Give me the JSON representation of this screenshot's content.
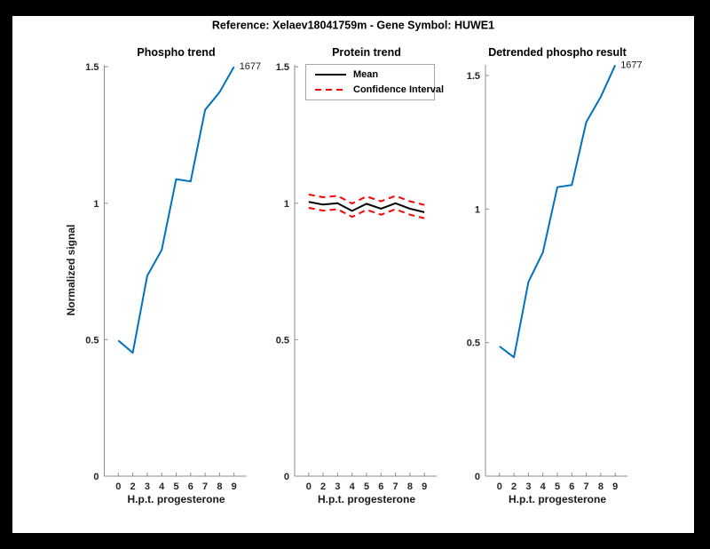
{
  "figure_title": "Reference:  Xelaev18041759m - Gene Symbol:  HUWE1",
  "ylabel": "Normalized signal",
  "colors": {
    "line_blue": "#0072BD",
    "mean_black": "#000000",
    "ci_red": "#FF0000",
    "axis_gray": "#8c8c8c",
    "text_dark": "#262626",
    "background": "#FFFFFF",
    "frame": "#000000"
  },
  "axes_shared": {
    "xlabel": "H.p.t. progesterone",
    "xticklabels": [
      "0",
      "2",
      "3",
      "4",
      "5",
      "6",
      "7",
      "8",
      "9"
    ],
    "yticks": [
      0,
      0.5,
      1,
      1.5
    ],
    "yticklabels": [
      "0",
      "0.5",
      "1",
      "1.5"
    ],
    "grid": false
  },
  "chart_data": [
    {
      "type": "line",
      "title": "Phospho trend",
      "xlabel": "H.p.t. progesterone",
      "ylabel": "Normalized signal",
      "x_labels": [
        "0",
        "2",
        "3",
        "4",
        "5",
        "6",
        "7",
        "8",
        "9"
      ],
      "ylim": [
        0,
        1.507
      ],
      "annotation": "1677",
      "series": [
        {
          "name": "phospho-signal",
          "color": "#0072BD",
          "style": "solid",
          "values": [
            0.497,
            0.452,
            0.734,
            0.829,
            1.088,
            1.08,
            1.342,
            1.407,
            1.5
          ]
        }
      ]
    },
    {
      "type": "line",
      "title": "Protein trend",
      "xlabel": "H.p.t. progesterone",
      "x_labels": [
        "0",
        "2",
        "3",
        "4",
        "5",
        "6",
        "7",
        "8",
        "9"
      ],
      "ylim": [
        0,
        1.507
      ],
      "legend": {
        "position": "top-left",
        "items": [
          {
            "label": "Mean",
            "style": "solid",
            "color": "#000000"
          },
          {
            "label": "Confidence Interval",
            "style": "dashed",
            "color": "#FF0000"
          }
        ]
      },
      "series": [
        {
          "name": "mean",
          "color": "#000000",
          "style": "solid",
          "values": [
            1.005,
            0.995,
            1.0,
            0.972,
            0.998,
            0.98,
            1.0,
            0.98,
            0.967
          ]
        },
        {
          "name": "ci-upper",
          "color": "#FF0000",
          "style": "dashed",
          "values": [
            1.032,
            1.022,
            1.027,
            0.999,
            1.025,
            1.007,
            1.027,
            1.007,
            0.994
          ]
        },
        {
          "name": "ci-lower",
          "color": "#FF0000",
          "style": "dashed",
          "values": [
            0.983,
            0.973,
            0.978,
            0.95,
            0.976,
            0.958,
            0.978,
            0.958,
            0.945
          ]
        }
      ]
    },
    {
      "type": "line",
      "title": "Detrended phospho result",
      "xlabel": "H.p.t. progesterone",
      "x_labels": [
        "0",
        "2",
        "3",
        "4",
        "5",
        "6",
        "7",
        "8",
        "9"
      ],
      "ylim": [
        0,
        1.54
      ],
      "annotation": "1677",
      "series": [
        {
          "name": "detrended-phospho-signal",
          "color": "#0072BD",
          "style": "solid",
          "values": [
            0.486,
            0.445,
            0.727,
            0.838,
            1.082,
            1.09,
            1.326,
            1.42,
            1.539
          ]
        }
      ]
    }
  ]
}
